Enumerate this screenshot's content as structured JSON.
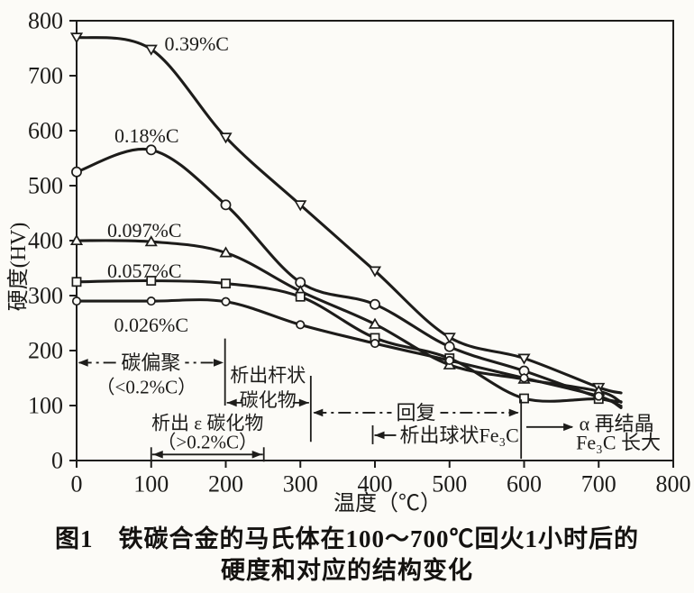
{
  "caption": {
    "line1": "图1　铁碳合金的马氏体在100～700℃回火1小时后的",
    "line2": "硬度和对应的结构变化"
  },
  "chart_data": {
    "type": "line",
    "title": "",
    "xlabel": "温度（℃）",
    "ylabel": "硬度(HV)",
    "xlim": [
      0,
      800
    ],
    "ylim": [
      0,
      800
    ],
    "x_ticks": [
      0,
      100,
      200,
      300,
      400,
      500,
      600,
      700,
      800
    ],
    "y_ticks": [
      0,
      100,
      200,
      300,
      400,
      500,
      600,
      700,
      800
    ],
    "grid": false,
    "legend": "inline-curve-labels",
    "x": [
      0,
      100,
      200,
      300,
      400,
      500,
      600,
      700
    ],
    "series": [
      {
        "name": "0.39%C",
        "marker": "triangle-down",
        "values": [
          770,
          748,
          588,
          465,
          345,
          224,
          186,
          133
        ],
        "tail": [
          730,
          123
        ],
        "label_pos": [
          161,
          758
        ]
      },
      {
        "name": "0.18%C",
        "marker": "circle",
        "values": [
          525,
          565,
          465,
          324,
          284,
          207,
          163,
          115
        ],
        "tail": [
          730,
          107
        ],
        "label_pos": [
          94,
          591
        ]
      },
      {
        "name": "0.097%C",
        "marker": "triangle-up",
        "values": [
          400,
          398,
          378,
          308,
          248,
          174,
          148,
          126
        ],
        "tail": [
          730,
          106
        ],
        "label_pos": [
          91,
          419
        ]
      },
      {
        "name": "0.057%C",
        "marker": "square",
        "values": [
          325,
          327,
          322,
          298,
          223,
          186,
          113,
          112
        ],
        "tail": [
          730,
          99
        ],
        "label_pos": [
          91,
          345
        ]
      },
      {
        "name": "0.026%C",
        "marker": "circle-small",
        "values": [
          290,
          290,
          289,
          247,
          213,
          182,
          150,
          117
        ],
        "tail": [
          730,
          96
        ],
        "label_pos": [
          100,
          247
        ]
      }
    ],
    "boundary_lines": [
      {
        "x": 199,
        "hv_from": 100,
        "hv_to": 222
      },
      {
        "x": 314,
        "hv_from": 34,
        "hv_to": 154
      },
      {
        "x": 596,
        "hv_from": 3,
        "hv_to": 111
      }
    ],
    "region_annotations": [
      {
        "id": "segregation",
        "type": "span",
        "text": "碳偏聚",
        "sub": "（<0.2%C）",
        "x_from": 2,
        "x_to": 197,
        "hv": 178,
        "sub_hv": 134,
        "dash": true
      },
      {
        "id": "rod-carbide",
        "type": "two-line-arrows",
        "line1": "析出杆状",
        "line2": "碳化物",
        "x_from": 199,
        "x_to": 314,
        "hv_line1": 155,
        "hv_line2": 110
      },
      {
        "id": "eps-carbide",
        "type": "span-bars",
        "line1": "析出 ε 碳化物",
        "line2": "（>0.2%C）",
        "x_from": 100,
        "x_to": 251,
        "hv": 11,
        "hv_line1": 68,
        "hv_line2": 34
      },
      {
        "id": "recovery",
        "type": "span",
        "text": "回复",
        "x_from": 317,
        "x_to": 593,
        "hv": 87,
        "dash": true
      },
      {
        "id": "spherical-fe3c",
        "type": "bar-arrow-text",
        "text": "析出球状Fe₃C",
        "x_bar": 397,
        "hv": 46
      },
      {
        "id": "alpha-recryst",
        "type": "arrow-two-line",
        "line1": "α 再结晶",
        "line2": "Fe₃C 长大",
        "ax_from": 603,
        "ax_to": 666,
        "hv_arrow": 61,
        "text_cx": 724,
        "hv_line1": 67,
        "hv_line2": 33
      }
    ]
  }
}
